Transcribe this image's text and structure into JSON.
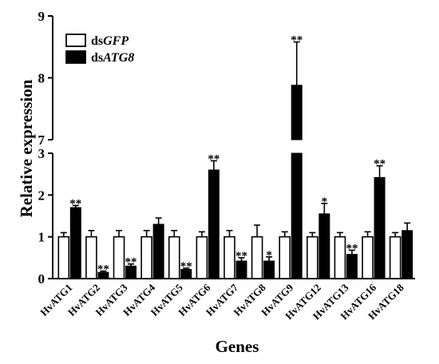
{
  "chart_data": {
    "type": "bar",
    "xlabel": "Genes",
    "ylabel": "Relative expression",
    "y_axis": "broken",
    "y_lower_range": [
      0,
      3
    ],
    "y_upper_range": [
      7,
      9
    ],
    "y_lower_ticks": [
      "0",
      "1",
      "2",
      "3"
    ],
    "y_upper_ticks": [
      "7",
      "8",
      "9"
    ],
    "categories": [
      "HvATG1",
      "HvATG2",
      "HvATG3",
      "HvATG4",
      "HvATG5",
      "HvATG6",
      "HvATG7",
      "HvATG8",
      "HvATG9",
      "HvATG12",
      "HvATG13",
      "HvATG16",
      "HvATG18"
    ],
    "series": [
      {
        "name": "dsGFP",
        "name_prefix": "ds",
        "name_italic": "GFP",
        "color": "#ffffff",
        "values": [
          1.0,
          1.0,
          1.0,
          1.0,
          1.0,
          1.0,
          1.0,
          1.0,
          1.0,
          1.0,
          1.0,
          1.0,
          1.0
        ],
        "errors": [
          0.1,
          0.15,
          0.15,
          0.15,
          0.15,
          0.12,
          0.15,
          0.28,
          0.12,
          0.1,
          0.1,
          0.12,
          0.1
        ]
      },
      {
        "name": "dsATG8",
        "name_prefix": "ds",
        "name_italic": "ATG8",
        "color": "#000000",
        "values": [
          1.7,
          0.15,
          0.3,
          1.3,
          0.22,
          2.6,
          0.42,
          0.42,
          7.88,
          1.55,
          0.58,
          2.42,
          1.15
        ],
        "errors": [
          0.05,
          0.03,
          0.05,
          0.15,
          0.03,
          0.22,
          0.08,
          0.1,
          0.7,
          0.25,
          0.1,
          0.28,
          0.18
        ]
      }
    ],
    "significance": [
      "**",
      "**",
      "**",
      "",
      "**",
      "**",
      "**",
      "*",
      "**",
      "*",
      "**",
      "**",
      ""
    ],
    "legend_position": "top-left",
    "grid": false
  }
}
